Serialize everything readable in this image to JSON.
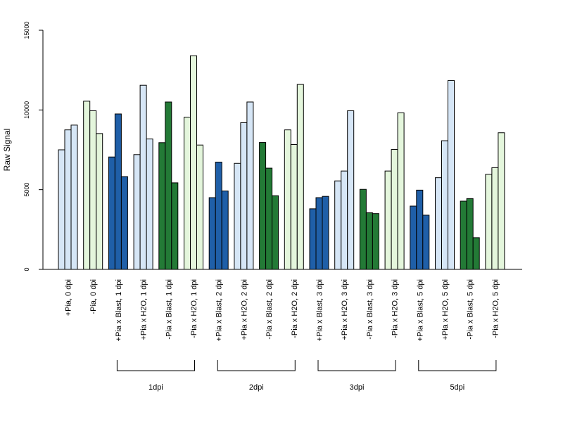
{
  "chart_data": {
    "type": "bar",
    "ylabel": "Raw Signal",
    "ylim": [
      0,
      15000
    ],
    "yticks": [
      0,
      5000,
      10000,
      15000
    ],
    "grid": false,
    "colors": {
      "light_blue": "#d6e6f6",
      "dark_blue": "#1f5fa8",
      "dark_green": "#237a36",
      "light_green": "#e4f6dc"
    },
    "categories": [
      {
        "label": "+Pia, 0 dpi",
        "color": "light_blue",
        "values": [
          7500,
          8750,
          9050
        ]
      },
      {
        "label": "-Pia, 0 dpi",
        "color": "light_green",
        "values": [
          10550,
          9950,
          8520
        ]
      },
      {
        "label": "+Pia x Blast, 1 dpi",
        "color": "dark_blue",
        "values": [
          7050,
          9750,
          5820
        ]
      },
      {
        "label": "+Pia x H2O, 1 dpi",
        "color": "light_blue",
        "values": [
          7200,
          11550,
          8180
        ]
      },
      {
        "label": "-Pia x Blast, 1 dpi",
        "color": "dark_green",
        "values": [
          7950,
          10500,
          5430
        ]
      },
      {
        "label": "-Pia x H2O, 1 dpi",
        "color": "light_green",
        "values": [
          9550,
          13400,
          7800
        ]
      },
      {
        "label": "+Pia x Blast, 2 dpi",
        "color": "dark_blue",
        "values": [
          4500,
          6730,
          4920
        ]
      },
      {
        "label": "+Pia x H2O, 2 dpi",
        "color": "light_blue",
        "values": [
          6650,
          9200,
          10500
        ]
      },
      {
        "label": "-Pia x Blast, 2 dpi",
        "color": "dark_green",
        "values": [
          7960,
          6350,
          4620
        ]
      },
      {
        "label": "-Pia x H2O, 2 dpi",
        "color": "light_green",
        "values": [
          8750,
          7830,
          11600
        ]
      },
      {
        "label": "+Pia x Blast, 3 dpi",
        "color": "dark_blue",
        "values": [
          3800,
          4500,
          4580
        ]
      },
      {
        "label": "+Pia x H2O, 3 dpi",
        "color": "light_blue",
        "values": [
          5550,
          6170,
          9950
        ]
      },
      {
        "label": "-Pia x Blast, 3 dpi",
        "color": "dark_green",
        "values": [
          5020,
          3550,
          3500
        ]
      },
      {
        "label": "-Pia x H2O, 3 dpi",
        "color": "light_green",
        "values": [
          6170,
          7520,
          9820
        ]
      },
      {
        "label": "+Pia x Blast, 5 dpi",
        "color": "dark_blue",
        "values": [
          3970,
          4970,
          3400
        ]
      },
      {
        "label": "+Pia x H2O, 5 dpi",
        "color": "light_blue",
        "values": [
          5750,
          8070,
          11850
        ]
      },
      {
        "label": "-Pia x Blast, 5 dpi",
        "color": "dark_green",
        "values": [
          4280,
          4440,
          1990
        ]
      },
      {
        "label": "-Pia x H2O, 5 dpi",
        "color": "light_green",
        "values": [
          5960,
          6380,
          8570
        ]
      }
    ],
    "groups": [
      {
        "label": "1dpi",
        "first": 2,
        "last": 5
      },
      {
        "label": "2dpi",
        "first": 6,
        "last": 9
      },
      {
        "label": "3dpi",
        "first": 10,
        "last": 13
      },
      {
        "label": "5dpi",
        "first": 14,
        "last": 17
      }
    ]
  }
}
